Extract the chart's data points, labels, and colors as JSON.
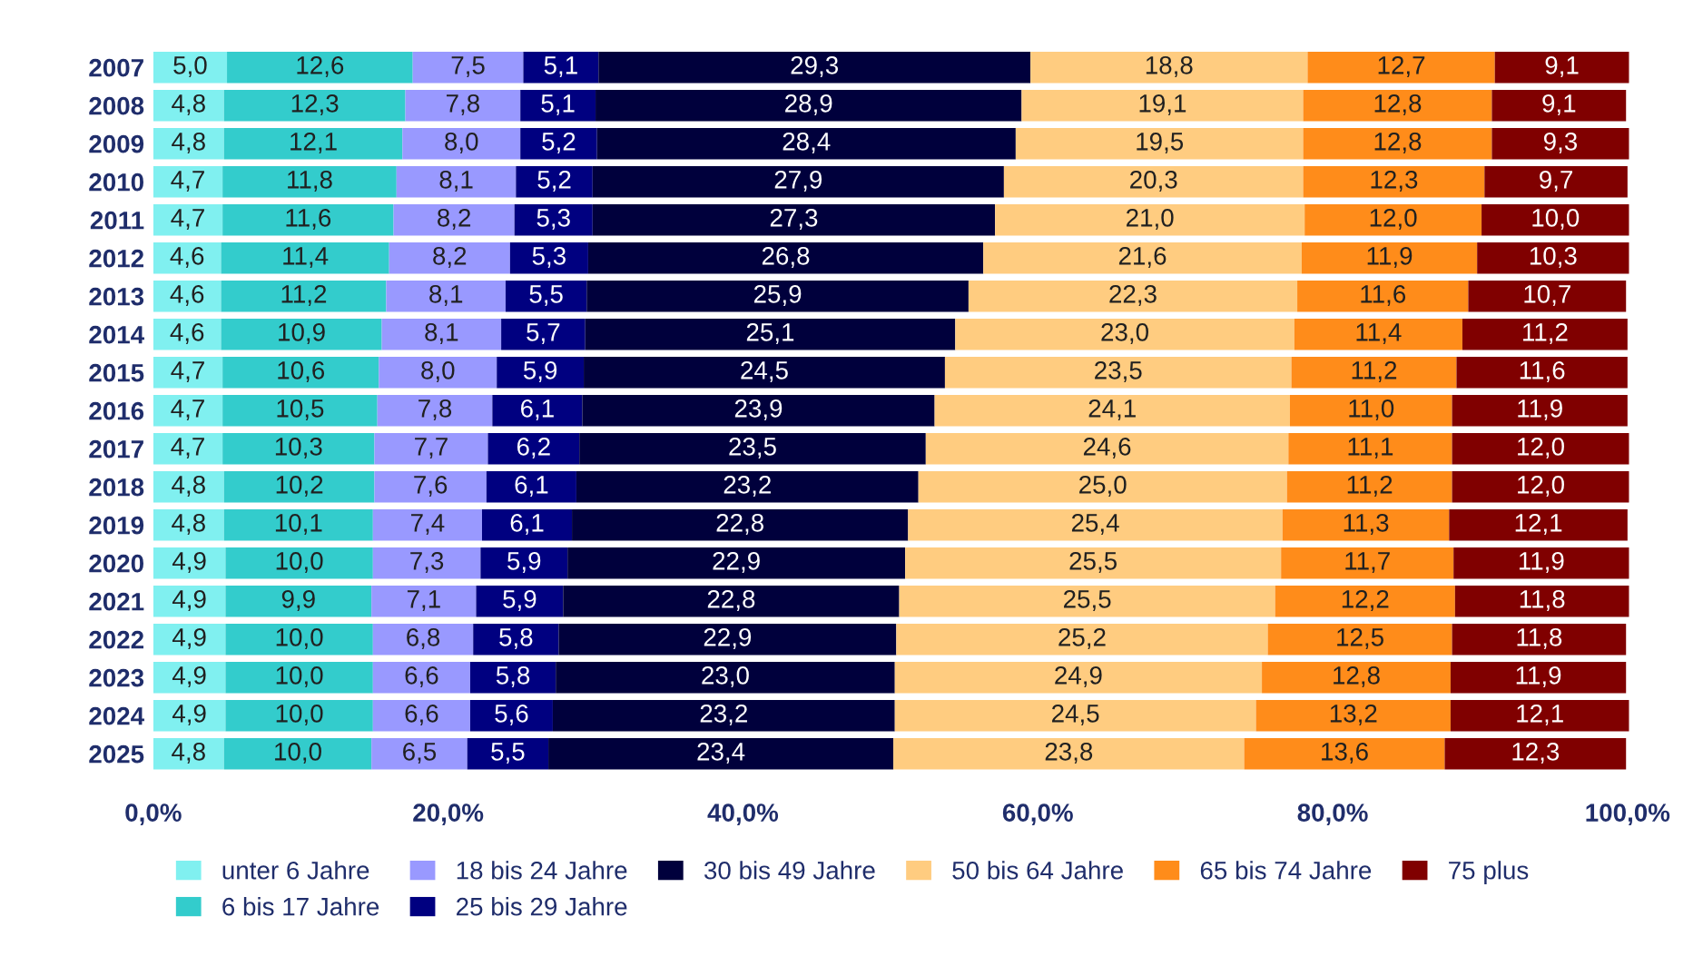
{
  "chart_data": {
    "type": "bar",
    "orientation": "horizontal",
    "stacked": true,
    "categories": [
      "2007",
      "2008",
      "2009",
      "2010",
      "2011",
      "2012",
      "2013",
      "2014",
      "2015",
      "2016",
      "2017",
      "2018",
      "2019",
      "2020",
      "2021",
      "2022",
      "2023",
      "2024",
      "2025"
    ],
    "series": [
      {
        "name": "unter 6 Jahre",
        "color": "#80f0f0",
        "values": [
          5.0,
          4.8,
          4.8,
          4.7,
          4.7,
          4.6,
          4.6,
          4.6,
          4.7,
          4.7,
          4.7,
          4.8,
          4.8,
          4.9,
          4.9,
          4.9,
          4.9,
          4.9,
          4.8
        ],
        "value_labels": [
          "5,0",
          "4,8",
          "4,8",
          "4,7",
          "4,7",
          "4,6",
          "4,6",
          "4,6",
          "4,7",
          "4,7",
          "4,7",
          "4,8",
          "4,8",
          "4,9",
          "4,9",
          "4,9",
          "4,9",
          "4,9",
          "4,8"
        ]
      },
      {
        "name": "6 bis 17 Jahre",
        "color": "#33cccc",
        "values": [
          12.6,
          12.3,
          12.1,
          11.8,
          11.6,
          11.4,
          11.2,
          10.9,
          10.6,
          10.5,
          10.3,
          10.2,
          10.1,
          10.0,
          9.9,
          10.0,
          10.0,
          10.0,
          10.0
        ],
        "value_labels": [
          "12,6",
          "12,3",
          "12,1",
          "11,8",
          "11,6",
          "11,4",
          "11,2",
          "10,9",
          "10,6",
          "10,5",
          "10,3",
          "10,2",
          "10,1",
          "10,0",
          "9,9",
          "10,0",
          "10,0",
          "10,0",
          "10,0"
        ]
      },
      {
        "name": "18 bis 24 Jahre",
        "color": "#9999ff",
        "values": [
          7.5,
          7.8,
          8.0,
          8.1,
          8.2,
          8.2,
          8.1,
          8.1,
          8.0,
          7.8,
          7.7,
          7.6,
          7.4,
          7.3,
          7.1,
          6.8,
          6.6,
          6.6,
          6.5
        ],
        "value_labels": [
          "7,5",
          "7,8",
          "8,0",
          "8,1",
          "8,2",
          "8,2",
          "8,1",
          "8,1",
          "8,0",
          "7,8",
          "7,7",
          "7,6",
          "7,4",
          "7,3",
          "7,1",
          "6,8",
          "6,6",
          "6,6",
          "6,5"
        ]
      },
      {
        "name": "25 bis 29 Jahre",
        "color": "#000080",
        "values": [
          5.1,
          5.1,
          5.2,
          5.2,
          5.3,
          5.3,
          5.5,
          5.7,
          5.9,
          6.1,
          6.2,
          6.1,
          6.1,
          5.9,
          5.9,
          5.8,
          5.8,
          5.6,
          5.5
        ],
        "value_labels": [
          "5,1",
          "5,1",
          "5,2",
          "5,2",
          "5,3",
          "5,3",
          "5,5",
          "5,7",
          "5,9",
          "6,1",
          "6,2",
          "6,1",
          "6,1",
          "5,9",
          "5,9",
          "5,8",
          "5,8",
          "5,6",
          "5,5"
        ]
      },
      {
        "name": "30 bis 49 Jahre",
        "color": "#00003c",
        "values": [
          29.3,
          28.9,
          28.4,
          27.9,
          27.3,
          26.8,
          25.9,
          25.1,
          24.5,
          23.9,
          23.5,
          23.2,
          22.8,
          22.9,
          22.8,
          22.9,
          23.0,
          23.2,
          23.4
        ],
        "value_labels": [
          "29,3",
          "28,9",
          "28,4",
          "27,9",
          "27,3",
          "26,8",
          "25,9",
          "25,1",
          "24,5",
          "23,9",
          "23,5",
          "23,2",
          "22,8",
          "22,9",
          "22,8",
          "22,9",
          "23,0",
          "23,2",
          "23,4"
        ]
      },
      {
        "name": "50 bis 64 Jahre",
        "color": "#ffcc80",
        "values": [
          18.8,
          19.1,
          19.5,
          20.3,
          21.0,
          21.6,
          22.3,
          23.0,
          23.5,
          24.1,
          24.6,
          25.0,
          25.4,
          25.5,
          25.5,
          25.2,
          24.9,
          24.5,
          23.8
        ],
        "value_labels": [
          "18,8",
          "19,1",
          "19,5",
          "20,3",
          "21,0",
          "21,6",
          "22,3",
          "23,0",
          "23,5",
          "24,1",
          "24,6",
          "25,0",
          "25,4",
          "25,5",
          "25,5",
          "25,2",
          "24,9",
          "24,5",
          "23,8"
        ]
      },
      {
        "name": "65 bis 74 Jahre",
        "color": "#ff8c1a",
        "values": [
          12.7,
          12.8,
          12.8,
          12.3,
          12.0,
          11.9,
          11.6,
          11.4,
          11.2,
          11.0,
          11.1,
          11.2,
          11.3,
          11.7,
          12.2,
          12.5,
          12.8,
          13.2,
          13.6
        ],
        "value_labels": [
          "12,7",
          "12,8",
          "12,8",
          "12,3",
          "12,0",
          "11,9",
          "11,6",
          "11,4",
          "11,2",
          "11,0",
          "11,1",
          "11,2",
          "11,3",
          "11,7",
          "12,2",
          "12,5",
          "12,8",
          "13,2",
          "13,6"
        ]
      },
      {
        "name": "75 plus",
        "color": "#800000",
        "values": [
          9.1,
          9.1,
          9.3,
          9.7,
          10.0,
          10.3,
          10.7,
          11.2,
          11.6,
          11.9,
          12.0,
          12.0,
          12.1,
          11.9,
          11.8,
          11.8,
          11.9,
          12.1,
          12.3
        ],
        "value_labels": [
          "9,1",
          "9,1",
          "9,3",
          "9,7",
          "10,0",
          "10,3",
          "10,7",
          "11,2",
          "11,6",
          "11,9",
          "12,0",
          "12,0",
          "12,1",
          "11,9",
          "11,8",
          "11,8",
          "11,9",
          "12,1",
          "12,3"
        ]
      }
    ],
    "xlim": [
      0,
      100.5
    ],
    "xticks": [
      {
        "value": 0,
        "label": "0,0%"
      },
      {
        "value": 20,
        "label": "20,0%"
      },
      {
        "value": 40,
        "label": "40,0%"
      },
      {
        "value": 60,
        "label": "60,0%"
      },
      {
        "value": 80,
        "label": "80,0%"
      },
      {
        "value": 100,
        "label": "100,0%"
      }
    ],
    "legend": "bottom"
  }
}
